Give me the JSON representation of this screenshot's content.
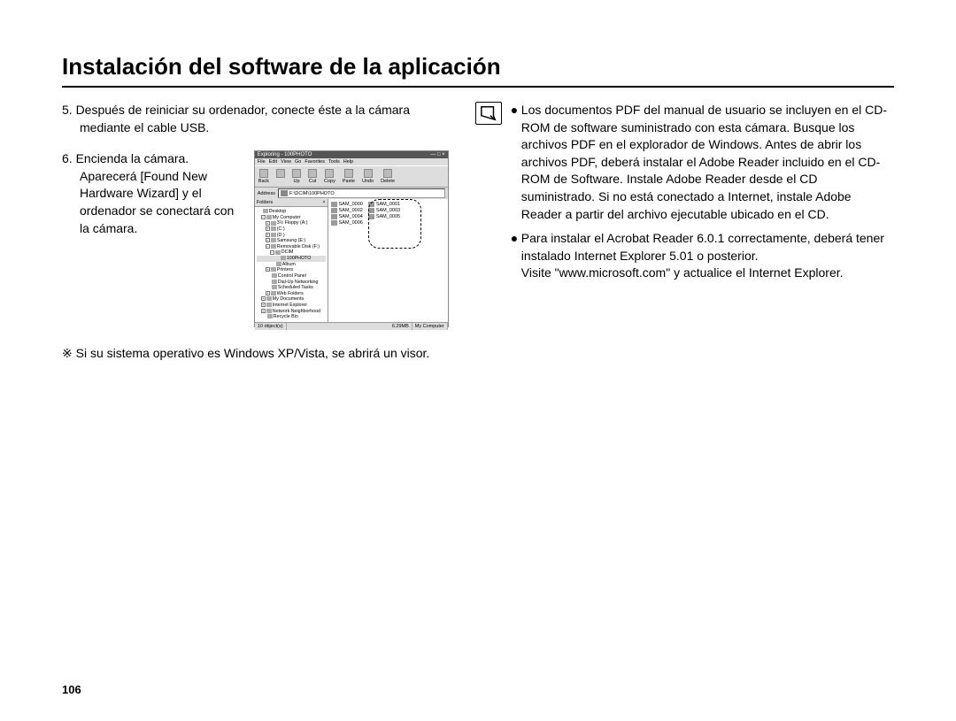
{
  "title": "Instalación del software de la aplicación",
  "steps": {
    "s5": "5. Después de reiniciar su ordenador, conecte éste a la cámara mediante el cable USB.",
    "s6a": "6. Encienda la cámara.",
    "s6b": "Aparecerá [Found New Hardware Wizard] y el ordenador se conectará con la cámara.",
    "note": "※ Si su sistema operativo es Windows XP/Vista, se abrirá un visor."
  },
  "explorer": {
    "title": "Exploring - 100PHOTO",
    "winbtns": "— □ ×",
    "menu": [
      "File",
      "Edit",
      "View",
      "Go",
      "Favorites",
      "Tools",
      "Help"
    ],
    "toolbar": [
      "Back",
      "",
      "Up",
      "Cut",
      "Copy",
      "Paste",
      "",
      "Undo",
      "Delete"
    ],
    "addr_label": "Address",
    "addr_value": "F:\\DCIM\\100PHOTO",
    "folders_label": "Folders",
    "close_x": "×",
    "tree": [
      {
        "ind": 0,
        "sq": "",
        "lbl": "Desktop"
      },
      {
        "ind": 1,
        "sq": "−",
        "lbl": "My Computer"
      },
      {
        "ind": 2,
        "sq": "+",
        "lbl": "3½ Floppy (A:)"
      },
      {
        "ind": 2,
        "sq": "+",
        "lbl": "(C:)"
      },
      {
        "ind": 2,
        "sq": "+",
        "lbl": "(D:)"
      },
      {
        "ind": 2,
        "sq": "+",
        "lbl": "Samsung (E:)"
      },
      {
        "ind": 2,
        "sq": "−",
        "lbl": "Removable Disk (F:)"
      },
      {
        "ind": 3,
        "sq": "−",
        "lbl": "DCIM"
      },
      {
        "ind": 4,
        "sq": "",
        "lbl": "100PHOTO",
        "sel": true
      },
      {
        "ind": 3,
        "sq": "",
        "lbl": "Album"
      },
      {
        "ind": 2,
        "sq": "+",
        "lbl": "Printers"
      },
      {
        "ind": 2,
        "sq": "",
        "lbl": "Control Panel"
      },
      {
        "ind": 2,
        "sq": "",
        "lbl": "Dial-Up Networking"
      },
      {
        "ind": 2,
        "sq": "",
        "lbl": "Scheduled Tasks"
      },
      {
        "ind": 2,
        "sq": "+",
        "lbl": "Web Folders"
      },
      {
        "ind": 1,
        "sq": "+",
        "lbl": "My Documents"
      },
      {
        "ind": 1,
        "sq": "+",
        "lbl": "Internet Explorer"
      },
      {
        "ind": 1,
        "sq": "+",
        "lbl": "Network Neighborhood"
      },
      {
        "ind": 1,
        "sq": "",
        "lbl": "Recycle Bin"
      }
    ],
    "files_col1": [
      "SAM_0000",
      "SAM_0002",
      "SAM_0004",
      "SAM_0006"
    ],
    "files_col2": [
      "SAM_0001",
      "SAM_0003",
      "SAM_0005"
    ],
    "status": {
      "objects": "10 object(s)",
      "size": "6.29MB",
      "loc": "My Computer"
    }
  },
  "right": {
    "b1": "Los documentos PDF del manual de usuario se incluyen en el CD-ROM de software suministrado con esta cámara. Busque los archivos PDF en el explorador de Windows. Antes de abrir los archivos PDF, deberá instalar el Adobe Reader incluido en el CD-ROM de Software. Instale Adobe Reader desde el CD suministrado. Si no está conectado a Internet, instale Adobe Reader a partir del archivo ejecutable ubicado en el CD.",
    "b2": "Para instalar el Acrobat Reader 6.0.1 correctamente, deberá tener instalado Internet Explorer 5.01 o posterior.",
    "b2_extra": "Visite \"www.microsoft.com\" y actualice el Internet Explorer."
  },
  "page_number": "106"
}
